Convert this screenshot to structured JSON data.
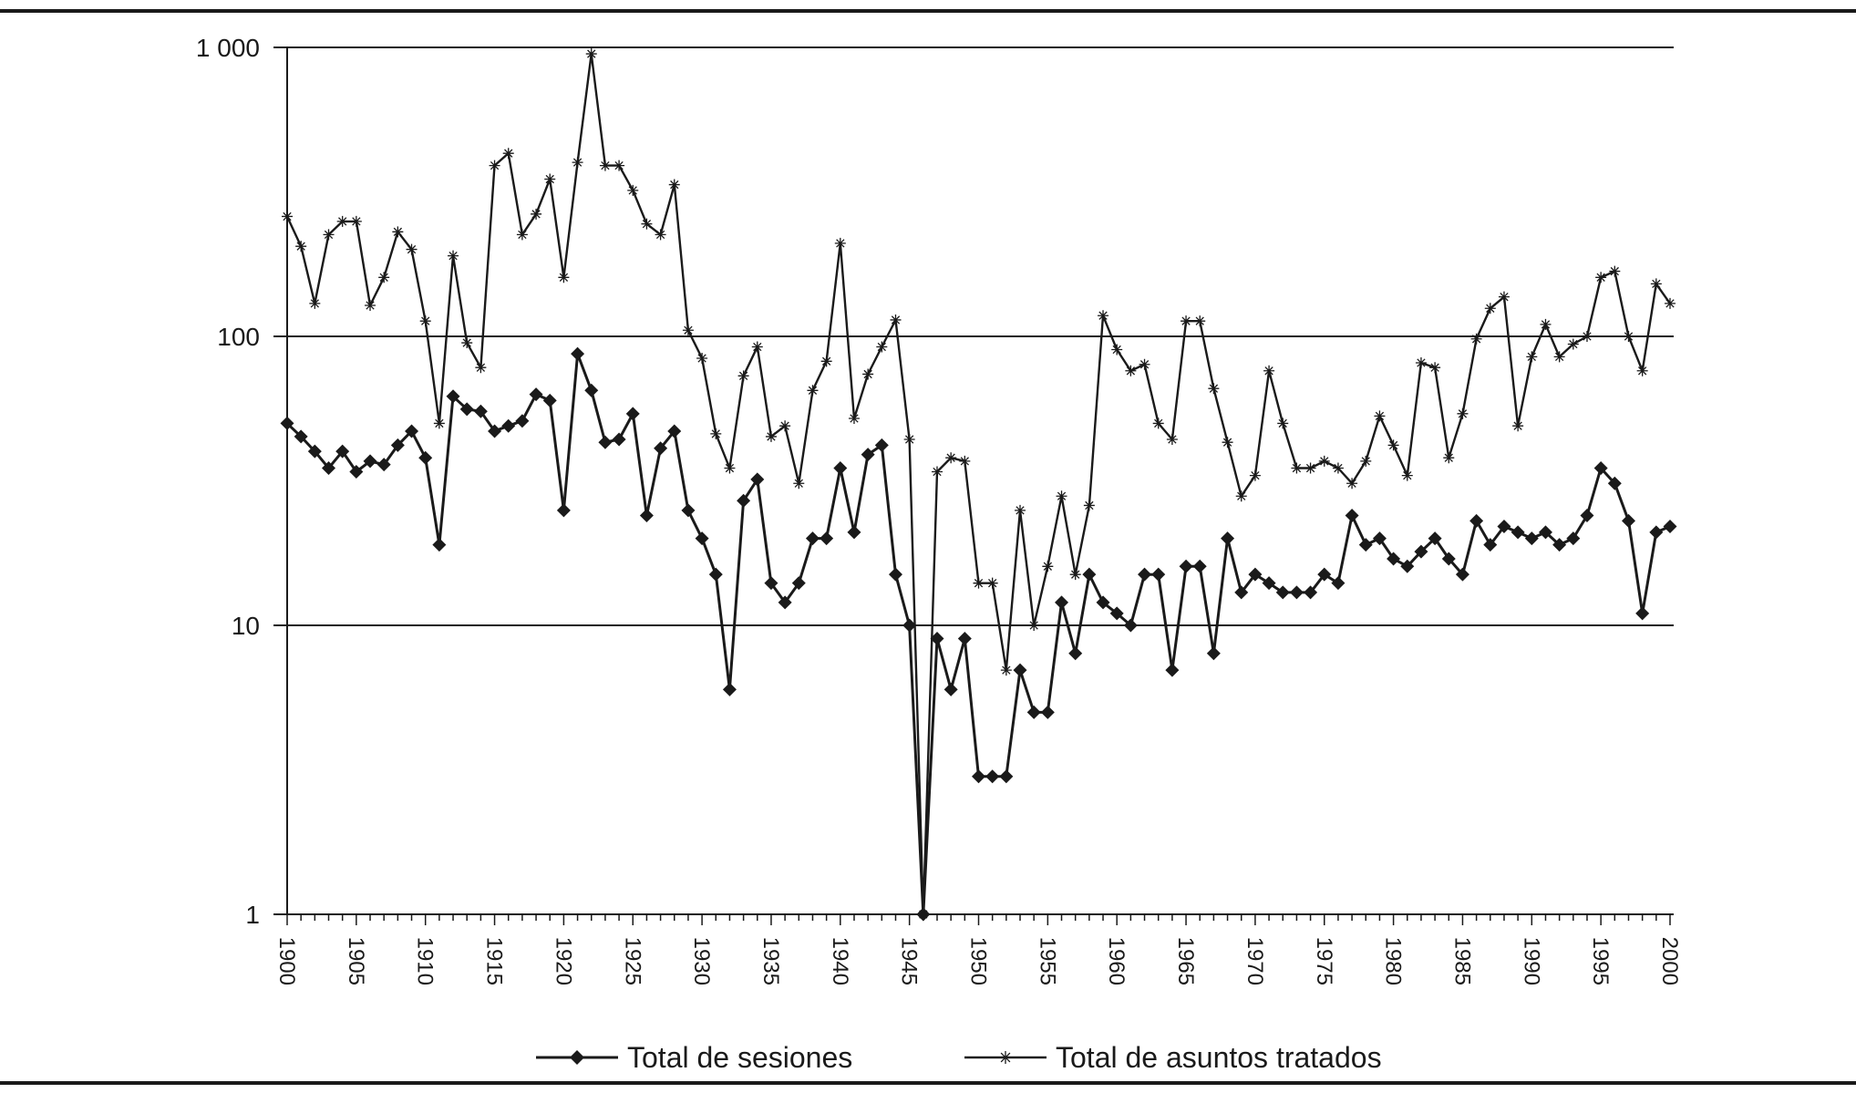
{
  "chart_data": {
    "type": "line",
    "title": "",
    "xlabel": "",
    "ylabel": "",
    "yscale": "log",
    "ylim": [
      1,
      1000
    ],
    "xlim": [
      1900,
      2000
    ],
    "grid": "horizontal",
    "legend_position": "bottom-center",
    "yticks": [
      {
        "value": 1,
        "label": "1"
      },
      {
        "value": 10,
        "label": "10"
      },
      {
        "value": 100,
        "label": "100"
      },
      {
        "value": 1000,
        "label": "1 000"
      }
    ],
    "xticks": [
      {
        "value": 1900,
        "label": "1900"
      },
      {
        "value": 1905,
        "label": "1905"
      },
      {
        "value": 1910,
        "label": "1910"
      },
      {
        "value": 1915,
        "label": "1915"
      },
      {
        "value": 1920,
        "label": "1920"
      },
      {
        "value": 1925,
        "label": "1925"
      },
      {
        "value": 1930,
        "label": "1930"
      },
      {
        "value": 1935,
        "label": "1935"
      },
      {
        "value": 1940,
        "label": "1940"
      },
      {
        "value": 1945,
        "label": "1945"
      },
      {
        "value": 1950,
        "label": "1950"
      },
      {
        "value": 1955,
        "label": "1955"
      },
      {
        "value": 1960,
        "label": "1960"
      },
      {
        "value": 1965,
        "label": "1965"
      },
      {
        "value": 1970,
        "label": "1970"
      },
      {
        "value": 1975,
        "label": "1975"
      },
      {
        "value": 1980,
        "label": "1980"
      },
      {
        "value": 1985,
        "label": "1985"
      },
      {
        "value": 1990,
        "label": "1990"
      },
      {
        "value": 1995,
        "label": "1995"
      },
      {
        "value": 2000,
        "label": "2000"
      }
    ],
    "x": [
      1900,
      1901,
      1902,
      1903,
      1904,
      1905,
      1906,
      1907,
      1908,
      1909,
      1910,
      1911,
      1912,
      1913,
      1914,
      1915,
      1916,
      1917,
      1918,
      1919,
      1920,
      1921,
      1922,
      1923,
      1924,
      1925,
      1926,
      1927,
      1928,
      1929,
      1930,
      1931,
      1932,
      1933,
      1934,
      1935,
      1936,
      1937,
      1938,
      1939,
      1940,
      1941,
      1942,
      1943,
      1944,
      1945,
      1946,
      1947,
      1948,
      1949,
      1950,
      1951,
      1952,
      1953,
      1954,
      1955,
      1956,
      1957,
      1958,
      1959,
      1960,
      1961,
      1962,
      1963,
      1964,
      1965,
      1966,
      1967,
      1968,
      1969,
      1970,
      1971,
      1972,
      1973,
      1974,
      1975,
      1976,
      1977,
      1978,
      1979,
      1980,
      1981,
      1982,
      1983,
      1984,
      1985,
      1986,
      1987,
      1988,
      1989,
      1990,
      1991,
      1992,
      1993,
      1994,
      1995,
      1996,
      1997,
      1998,
      1999,
      2000
    ],
    "series": [
      {
        "name": "Total de sesiones",
        "marker": "diamond",
        "color": "#1a1a1a",
        "values": [
          50,
          45,
          40,
          35,
          40,
          34,
          37,
          36,
          42,
          47,
          38,
          19,
          62,
          56,
          55,
          47,
          49,
          51,
          63,
          60,
          25,
          87,
          65,
          43,
          44,
          54,
          24,
          41,
          47,
          25,
          20,
          15,
          6,
          27,
          32,
          14,
          12,
          14,
          20,
          20,
          35,
          21,
          39,
          42,
          15,
          10,
          1,
          9,
          6,
          9,
          3,
          3,
          3,
          7,
          5,
          5,
          12,
          8,
          15,
          12,
          11,
          10,
          15,
          15,
          7,
          16,
          16,
          8,
          20,
          13,
          15,
          14,
          13,
          13,
          13,
          15,
          14,
          24,
          19,
          20,
          17,
          16,
          18,
          20,
          17,
          15,
          23,
          19,
          22,
          21,
          20,
          21,
          19,
          20,
          24,
          35,
          31,
          23,
          11,
          21,
          22
        ]
      },
      {
        "name": "Total de asuntos tratados",
        "marker": "star",
        "color": "#1a1a1a",
        "values": [
          260,
          205,
          130,
          225,
          250,
          250,
          128,
          160,
          230,
          200,
          113,
          50,
          190,
          95,
          78,
          390,
          430,
          225,
          265,
          350,
          160,
          400,
          950,
          390,
          390,
          320,
          245,
          225,
          335,
          105,
          84,
          46,
          35,
          73,
          92,
          45,
          49,
          31,
          65,
          82,
          210,
          52,
          74,
          92,
          114,
          44,
          1,
          34,
          38,
          37,
          14,
          14,
          7,
          25,
          10,
          16,
          28,
          15,
          26,
          118,
          90,
          76,
          80,
          50,
          44,
          113,
          113,
          66,
          43,
          28,
          33,
          76,
          50,
          35,
          35,
          37,
          35,
          31,
          37,
          53,
          42,
          33,
          81,
          78,
          38,
          54,
          98,
          125,
          137,
          49,
          85,
          110,
          85,
          94,
          100,
          160,
          168,
          100,
          76,
          152,
          130
        ]
      }
    ]
  }
}
